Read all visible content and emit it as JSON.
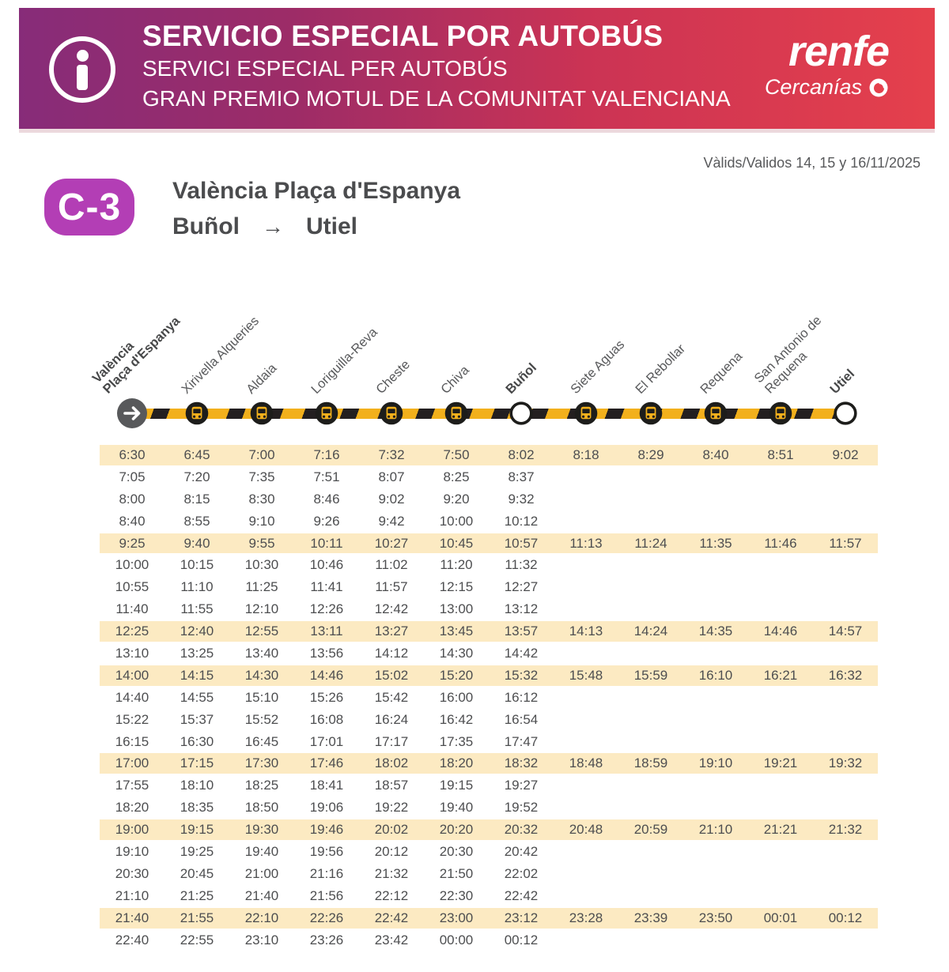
{
  "header": {
    "title_line1": "SERVICIO ESPECIAL POR AUTOBÚS",
    "title_line2": "SERVICI ESPECIAL PER AUTOBÚS",
    "title_line3": "GRAN PREMIO MOTUL DE LA COMUNITAT VALENCIANA",
    "brand": "renfe",
    "brand_sub": "Cercanías"
  },
  "validity": "Vàlids/Validos 14, 15 y 16/11/2025",
  "line": {
    "badge": "C-3",
    "title": "València Plaça d'Espanya",
    "from": "Buñol",
    "arrow": "→",
    "to": "Utiel"
  },
  "stations": [
    {
      "name": "València Plaça d'Espanya",
      "lines": [
        "València",
        "Plaça d'Espanya"
      ],
      "bold": true,
      "icon": "start-arrow"
    },
    {
      "name": "Xirivella Alqueries",
      "lines": [
        "Xirivella Alqueries"
      ],
      "bold": false,
      "icon": "bus"
    },
    {
      "name": "Aldaia",
      "lines": [
        "Aldaia"
      ],
      "bold": false,
      "icon": "bus"
    },
    {
      "name": "Loriguilla-Reva",
      "lines": [
        "Loriguilla-Reva"
      ],
      "bold": false,
      "icon": "bus"
    },
    {
      "name": "Cheste",
      "lines": [
        "Cheste"
      ],
      "bold": false,
      "icon": "bus"
    },
    {
      "name": "Chiva",
      "lines": [
        "Chiva"
      ],
      "bold": false,
      "icon": "bus"
    },
    {
      "name": "Buñol",
      "lines": [
        "Buñol"
      ],
      "bold": true,
      "icon": "station-circle"
    },
    {
      "name": "Siete Aguas",
      "lines": [
        "Siete Aguas"
      ],
      "bold": false,
      "icon": "bus"
    },
    {
      "name": "El Rebollar",
      "lines": [
        "El Rebollar"
      ],
      "bold": false,
      "icon": "bus"
    },
    {
      "name": "Requena",
      "lines": [
        "Requena"
      ],
      "bold": false,
      "icon": "bus"
    },
    {
      "name": "San Antonio de Requena",
      "lines": [
        "San Antonio de",
        "Requena"
      ],
      "bold": false,
      "icon": "bus"
    },
    {
      "name": "Utiel",
      "lines": [
        "Utiel"
      ],
      "bold": true,
      "icon": "station-circle"
    }
  ],
  "timetable": {
    "rows": [
      {
        "highlighted": true,
        "times": [
          "6:30",
          "6:45",
          "7:00",
          "7:16",
          "7:32",
          "7:50",
          "8:02",
          "8:18",
          "8:29",
          "8:40",
          "8:51",
          "9:02"
        ]
      },
      {
        "highlighted": false,
        "times": [
          "7:05",
          "7:20",
          "7:35",
          "7:51",
          "8:07",
          "8:25",
          "8:37"
        ]
      },
      {
        "highlighted": false,
        "times": [
          "8:00",
          "8:15",
          "8:30",
          "8:46",
          "9:02",
          "9:20",
          "9:32"
        ]
      },
      {
        "highlighted": false,
        "times": [
          "8:40",
          "8:55",
          "9:10",
          "9:26",
          "9:42",
          "10:00",
          "10:12"
        ]
      },
      {
        "highlighted": true,
        "times": [
          "9:25",
          "9:40",
          "9:55",
          "10:11",
          "10:27",
          "10:45",
          "10:57",
          "11:13",
          "11:24",
          "11:35",
          "11:46",
          "11:57"
        ]
      },
      {
        "highlighted": false,
        "times": [
          "10:00",
          "10:15",
          "10:30",
          "10:46",
          "11:02",
          "11:20",
          "11:32"
        ]
      },
      {
        "highlighted": false,
        "times": [
          "10:55",
          "11:10",
          "11:25",
          "11:41",
          "11:57",
          "12:15",
          "12:27"
        ]
      },
      {
        "highlighted": false,
        "times": [
          "11:40",
          "11:55",
          "12:10",
          "12:26",
          "12:42",
          "13:00",
          "13:12"
        ]
      },
      {
        "highlighted": true,
        "times": [
          "12:25",
          "12:40",
          "12:55",
          "13:11",
          "13:27",
          "13:45",
          "13:57",
          "14:13",
          "14:24",
          "14:35",
          "14:46",
          "14:57"
        ]
      },
      {
        "highlighted": false,
        "times": [
          "13:10",
          "13:25",
          "13:40",
          "13:56",
          "14:12",
          "14:30",
          "14:42"
        ]
      },
      {
        "highlighted": true,
        "times": [
          "14:00",
          "14:15",
          "14:30",
          "14:46",
          "15:02",
          "15:20",
          "15:32",
          "15:48",
          "15:59",
          "16:10",
          "16:21",
          "16:32"
        ]
      },
      {
        "highlighted": false,
        "times": [
          "14:40",
          "14:55",
          "15:10",
          "15:26",
          "15:42",
          "16:00",
          "16:12"
        ]
      },
      {
        "highlighted": false,
        "times": [
          "15:22",
          "15:37",
          "15:52",
          "16:08",
          "16:24",
          "16:42",
          "16:54"
        ]
      },
      {
        "highlighted": false,
        "times": [
          "16:15",
          "16:30",
          "16:45",
          "17:01",
          "17:17",
          "17:35",
          "17:47"
        ]
      },
      {
        "highlighted": true,
        "times": [
          "17:00",
          "17:15",
          "17:30",
          "17:46",
          "18:02",
          "18:20",
          "18:32",
          "18:48",
          "18:59",
          "19:10",
          "19:21",
          "19:32"
        ]
      },
      {
        "highlighted": false,
        "times": [
          "17:55",
          "18:10",
          "18:25",
          "18:41",
          "18:57",
          "19:15",
          "19:27"
        ]
      },
      {
        "highlighted": false,
        "times": [
          "18:20",
          "18:35",
          "18:50",
          "19:06",
          "19:22",
          "19:40",
          "19:52"
        ]
      },
      {
        "highlighted": true,
        "times": [
          "19:00",
          "19:15",
          "19:30",
          "19:46",
          "20:02",
          "20:20",
          "20:32",
          "20:48",
          "20:59",
          "21:10",
          "21:21",
          "21:32"
        ]
      },
      {
        "highlighted": false,
        "times": [
          "19:10",
          "19:25",
          "19:40",
          "19:56",
          "20:12",
          "20:30",
          "20:42"
        ]
      },
      {
        "highlighted": false,
        "times": [
          "20:30",
          "20:45",
          "21:00",
          "21:16",
          "21:32",
          "21:50",
          "22:02"
        ]
      },
      {
        "highlighted": false,
        "times": [
          "21:10",
          "21:25",
          "21:40",
          "21:56",
          "22:12",
          "22:30",
          "22:42"
        ]
      },
      {
        "highlighted": true,
        "times": [
          "21:40",
          "21:55",
          "22:10",
          "22:26",
          "22:42",
          "23:00",
          "23:12",
          "23:28",
          "23:39",
          "23:50",
          "00:01",
          "00:12"
        ]
      },
      {
        "highlighted": false,
        "times": [
          "22:40",
          "22:55",
          "23:10",
          "23:26",
          "23:42",
          "00:00",
          "00:12"
        ]
      }
    ]
  },
  "colors": {
    "gradient_left": "#872c79",
    "gradient_right": "#e5404c",
    "badge_magenta": "#b33eb5",
    "accent_yellow": "#f2b01c",
    "highlight_beige": "#fceac2"
  }
}
